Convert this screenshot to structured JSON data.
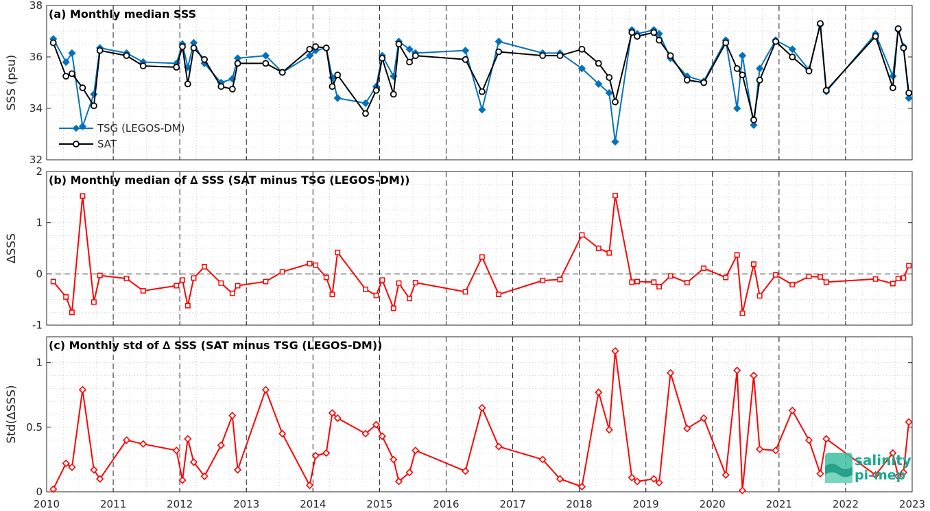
{
  "chart_data": [
    {
      "type": "line",
      "title": "(a) Monthly median SSS",
      "ylabel": "SSS (psu)",
      "xlim": [
        2010,
        2023
      ],
      "ylim": [
        32,
        38
      ],
      "yticks": [
        32,
        34,
        36,
        38
      ],
      "xticks": [
        "2010",
        "2011",
        "2012",
        "2013",
        "2014",
        "2015",
        "2016",
        "2017",
        "2018",
        "2019",
        "2020",
        "2021",
        "2022",
        "2023"
      ],
      "legend": "bottom-left",
      "grid": true,
      "series": [
        {
          "name": "TSG (LEGOS-DM)",
          "color": "#0072bd",
          "marker": "diamond",
          "x": [
            2010.1,
            2010.29,
            2010.38,
            2010.54,
            2010.71,
            2010.8,
            2011.2,
            2011.45,
            2011.95,
            2012.04,
            2012.12,
            2012.21,
            2012.37,
            2012.62,
            2012.79,
            2012.87,
            2013.29,
            2013.54,
            2013.95,
            2014.04,
            2014.2,
            2014.29,
            2014.37,
            2014.79,
            2014.95,
            2015.04,
            2015.21,
            2015.29,
            2015.45,
            2015.54,
            2016.29,
            2016.54,
            2016.79,
            2017.45,
            2017.71,
            2018.04,
            2018.29,
            2018.45,
            2018.54,
            2018.79,
            2018.87,
            2019.12,
            2019.2,
            2019.37,
            2019.62,
            2019.87,
            2020.2,
            2020.37,
            2020.45,
            2020.62,
            2020.71,
            2020.95,
            2021.2,
            2021.45,
            2021.62,
            2021.71,
            2022.45,
            2022.71,
            2022.79,
            2022.87,
            2022.95
          ],
          "y": [
            36.7,
            35.8,
            36.15,
            33.3,
            34.55,
            36.35,
            36.15,
            35.8,
            35.75,
            36.5,
            35.6,
            36.55,
            35.75,
            35.0,
            35.15,
            35.95,
            36.05,
            35.4,
            36.05,
            36.25,
            36.35,
            35.2,
            34.4,
            34.2,
            34.85,
            36.05,
            35.25,
            36.6,
            36.3,
            36.15,
            36.25,
            33.95,
            36.6,
            36.15,
            36.15,
            35.55,
            34.95,
            34.6,
            32.7,
            37.05,
            36.9,
            37.05,
            36.9,
            35.95,
            35.25,
            35.05,
            36.65,
            34.0,
            36.05,
            33.35,
            35.55,
            36.65,
            36.3,
            35.5,
            37.25,
            34.65,
            36.9,
            35.25,
            37.05,
            36.4,
            34.4
          ]
        },
        {
          "name": "SAT",
          "color": "#000000",
          "marker": "circle",
          "x": [
            2010.1,
            2010.29,
            2010.38,
            2010.54,
            2010.71,
            2010.8,
            2011.2,
            2011.45,
            2011.95,
            2012.04,
            2012.12,
            2012.21,
            2012.37,
            2012.62,
            2012.79,
            2012.87,
            2013.29,
            2013.54,
            2013.95,
            2014.04,
            2014.2,
            2014.29,
            2014.37,
            2014.79,
            2014.95,
            2015.04,
            2015.21,
            2015.29,
            2015.45,
            2015.54,
            2016.29,
            2016.54,
            2016.79,
            2017.45,
            2017.71,
            2018.04,
            2018.29,
            2018.45,
            2018.54,
            2018.79,
            2018.87,
            2019.12,
            2019.2,
            2019.37,
            2019.62,
            2019.87,
            2020.2,
            2020.37,
            2020.45,
            2020.62,
            2020.71,
            2020.95,
            2021.2,
            2021.45,
            2021.62,
            2021.71,
            2022.45,
            2022.71,
            2022.79,
            2022.87,
            2022.95
          ],
          "y": [
            36.55,
            35.25,
            35.35,
            34.8,
            34.1,
            36.25,
            36.05,
            35.65,
            35.6,
            36.4,
            34.95,
            36.35,
            35.9,
            34.85,
            34.75,
            35.75,
            35.75,
            35.4,
            36.3,
            36.4,
            36.35,
            34.85,
            35.3,
            33.8,
            34.7,
            35.95,
            34.55,
            36.5,
            35.8,
            36.05,
            35.9,
            34.65,
            36.2,
            36.05,
            36.05,
            36.3,
            35.75,
            35.2,
            34.25,
            36.95,
            36.8,
            36.95,
            36.65,
            36.05,
            35.1,
            35.0,
            36.55,
            35.55,
            35.3,
            33.55,
            35.1,
            36.6,
            36.0,
            35.45,
            37.3,
            34.7,
            36.8,
            34.8,
            37.1,
            36.35,
            34.6
          ]
        }
      ]
    },
    {
      "type": "line",
      "title": "(b) Monthly median of ∆ SSS (SAT minus TSG (LEGOS-DM))",
      "ylabel": "∆SSS",
      "xlim": [
        2010,
        2023
      ],
      "ylim": [
        -1,
        2
      ],
      "yticks": [
        -1,
        0,
        1,
        2
      ],
      "xticks": [
        "2010",
        "2011",
        "2012",
        "2013",
        "2014",
        "2015",
        "2016",
        "2017",
        "2018",
        "2019",
        "2020",
        "2021",
        "2022",
        "2023"
      ],
      "grid": true,
      "series": [
        {
          "color": "#ff0000",
          "marker": "square",
          "x": [
            2010.1,
            2010.29,
            2010.38,
            2010.54,
            2010.71,
            2010.8,
            2011.2,
            2011.45,
            2011.95,
            2012.04,
            2012.12,
            2012.21,
            2012.37,
            2012.62,
            2012.79,
            2012.87,
            2013.29,
            2013.54,
            2013.95,
            2014.04,
            2014.2,
            2014.29,
            2014.37,
            2014.79,
            2014.95,
            2015.04,
            2015.21,
            2015.29,
            2015.45,
            2015.54,
            2016.29,
            2016.54,
            2016.79,
            2017.45,
            2017.71,
            2018.04,
            2018.29,
            2018.45,
            2018.54,
            2018.79,
            2018.87,
            2019.12,
            2019.2,
            2019.37,
            2019.62,
            2019.87,
            2020.2,
            2020.37,
            2020.45,
            2020.62,
            2020.71,
            2020.95,
            2021.2,
            2021.45,
            2021.62,
            2021.71,
            2022.45,
            2022.71,
            2022.79,
            2022.87,
            2022.95
          ],
          "y": [
            -0.15,
            -0.45,
            -0.75,
            1.52,
            -0.55,
            -0.03,
            -0.09,
            -0.33,
            -0.23,
            -0.12,
            -0.62,
            -0.08,
            0.14,
            -0.18,
            -0.38,
            -0.23,
            -0.15,
            0.04,
            0.2,
            0.17,
            -0.07,
            -0.4,
            0.42,
            -0.3,
            -0.42,
            -0.12,
            -0.67,
            -0.18,
            -0.48,
            -0.17,
            -0.35,
            0.33,
            -0.4,
            -0.13,
            -0.11,
            0.76,
            0.5,
            0.41,
            1.53,
            -0.16,
            -0.15,
            -0.16,
            -0.25,
            -0.04,
            -0.17,
            0.11,
            -0.07,
            0.37,
            -0.77,
            0.19,
            -0.43,
            -0.02,
            -0.21,
            -0.05,
            -0.06,
            -0.16,
            -0.1,
            -0.19,
            -0.09,
            -0.08,
            0.16
          ]
        }
      ]
    },
    {
      "type": "line",
      "title": "(c) Monthly std of ∆ SSS (SAT minus TSG (LEGOS-DM))",
      "ylabel": "Std(∆SSS)",
      "xlim": [
        2010,
        2023
      ],
      "ylim": [
        0,
        1.2
      ],
      "yticks": [
        0,
        0.5,
        1
      ],
      "ytick_labels": [
        "0",
        "0.5",
        "1"
      ],
      "xticks": [
        "2010",
        "2011",
        "2012",
        "2013",
        "2014",
        "2015",
        "2016",
        "2017",
        "2018",
        "2019",
        "2020",
        "2021",
        "2022",
        "2023"
      ],
      "grid": true,
      "series": [
        {
          "color": "#ff0000",
          "marker": "diamond",
          "x": [
            2010.1,
            2010.29,
            2010.38,
            2010.54,
            2010.71,
            2010.8,
            2011.2,
            2011.45,
            2011.95,
            2012.04,
            2012.12,
            2012.21,
            2012.37,
            2012.62,
            2012.79,
            2012.87,
            2013.29,
            2013.54,
            2013.95,
            2014.04,
            2014.2,
            2014.29,
            2014.37,
            2014.79,
            2014.95,
            2015.04,
            2015.21,
            2015.29,
            2015.45,
            2015.54,
            2016.29,
            2016.54,
            2016.79,
            2017.45,
            2017.71,
            2018.04,
            2018.29,
            2018.45,
            2018.54,
            2018.79,
            2018.87,
            2019.12,
            2019.2,
            2019.37,
            2019.62,
            2019.87,
            2020.2,
            2020.37,
            2020.45,
            2020.62,
            2020.71,
            2020.95,
            2021.2,
            2021.45,
            2021.62,
            2021.71,
            2022.45,
            2022.71,
            2022.79,
            2022.87,
            2022.95
          ],
          "y": [
            0.02,
            0.22,
            0.19,
            0.79,
            0.17,
            0.1,
            0.4,
            0.37,
            0.32,
            0.09,
            0.41,
            0.23,
            0.12,
            0.36,
            0.59,
            0.17,
            0.79,
            0.45,
            0.05,
            0.28,
            0.3,
            0.61,
            0.57,
            0.45,
            0.52,
            0.43,
            0.25,
            0.08,
            0.15,
            0.32,
            0.16,
            0.65,
            0.35,
            0.25,
            0.1,
            0.04,
            0.77,
            0.48,
            1.09,
            0.11,
            0.08,
            0.1,
            0.07,
            0.92,
            0.49,
            0.57,
            0.13,
            0.94,
            0.01,
            0.9,
            0.33,
            0.32,
            0.63,
            0.4,
            0.14,
            0.41,
            0.13,
            0.3,
            0.12,
            0.15,
            0.54
          ]
        }
      ]
    }
  ],
  "logo": {
    "line1": "salinity",
    "line2": "pi-mep",
    "color": "#1aa98f"
  }
}
